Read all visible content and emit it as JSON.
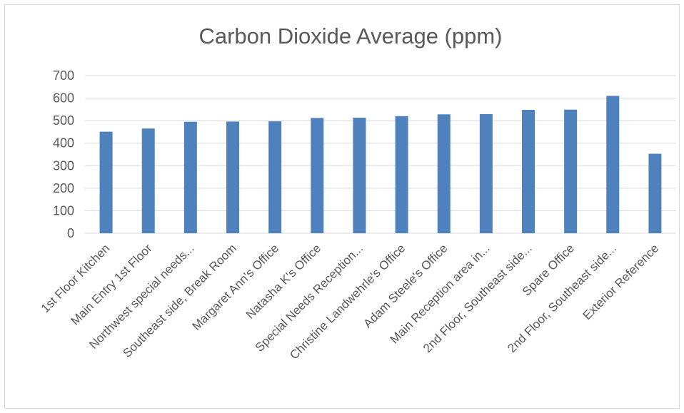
{
  "chart_data": {
    "type": "bar",
    "title": "Carbon Dioxide Average (ppm)",
    "xlabel": "",
    "ylabel": "",
    "ylim": [
      0,
      700
    ],
    "yticks": [
      0,
      100,
      200,
      300,
      400,
      500,
      600,
      700
    ],
    "grid": true,
    "legend": "none",
    "bar_color": "#4f81bd",
    "categories": [
      "1st Floor Kitchen",
      "Main Entry 1st Floor",
      "Northwest special needs...",
      "Southeast side, Break Room",
      "Margaret Ann's Office",
      "Natasha K's Office",
      "Special Needs Reception...",
      "Christine Landwehrle's Office",
      "Adam Steele's Office",
      "Main Reception area in...",
      "2nd Floor, Southeast side...",
      "Spare Office",
      "2nd Floor, Southeast side...",
      "Exterior Reference"
    ],
    "values": [
      451,
      465,
      495,
      496,
      497,
      512,
      513,
      520,
      528,
      529,
      548,
      549,
      610,
      353
    ]
  }
}
